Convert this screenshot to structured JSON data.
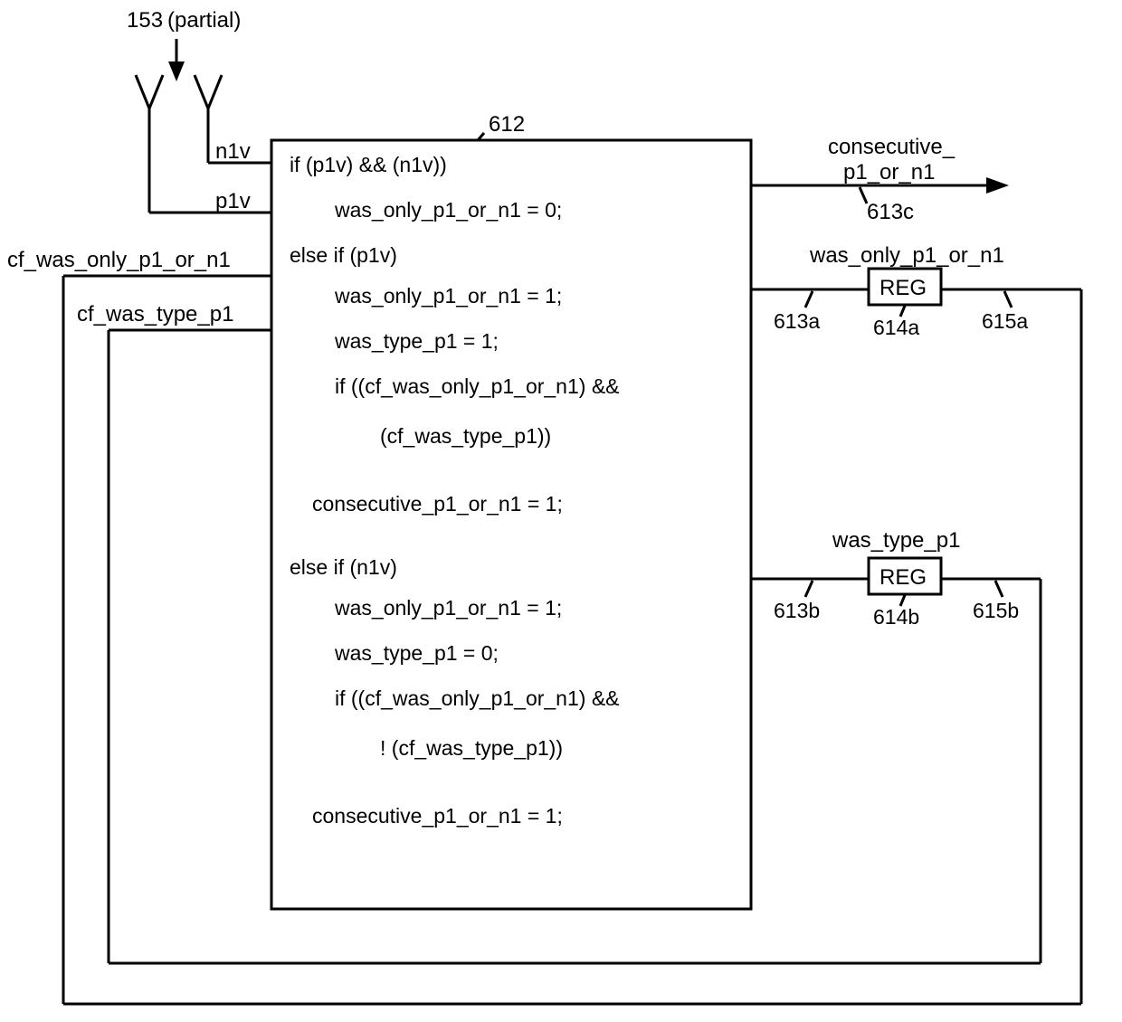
{
  "diagram": {
    "type": "flowchart",
    "stroke_color": "#000000",
    "stroke_width": 3,
    "background_color": "#ffffff",
    "font_family": "Helvetica, Arial, sans-serif",
    "label_fontsize": 24,
    "code_fontsize": 23,
    "top_ref": {
      "num": "153",
      "suffix": "(partial)"
    },
    "main_box_ref": "612",
    "inputs": {
      "n1v": "n1v",
      "p1v": "p1v",
      "cf_was_only": "cf_was_only_p1_or_n1",
      "cf_was_type": "cf_was_type_p1"
    },
    "outputs": {
      "consecutive": {
        "line1": "consecutive_",
        "line2": "p1_or_n1",
        "ref": "613c"
      },
      "was_only": {
        "label": "was_only_p1_or_n1",
        "reg": "REG",
        "ref_left": "613a",
        "ref_mid": "614a",
        "ref_right": "615a"
      },
      "was_type": {
        "label": "was_type_p1",
        "reg": "REG",
        "ref_left": "613b",
        "ref_mid": "614b",
        "ref_right": "615b"
      }
    },
    "code_lines": [
      {
        "indent": 0,
        "text": "if (p1v) && (n1v))"
      },
      {
        "indent": 1,
        "text": "was_only_p1_or_n1 = 0;"
      },
      {
        "indent": 0,
        "text": "else if (p1v)"
      },
      {
        "indent": 1,
        "text": "was_only_p1_or_n1 = 1;"
      },
      {
        "indent": 1,
        "text": "was_type_p1 = 1;"
      },
      {
        "indent": 1,
        "text": "if ((cf_was_only_p1_or_n1) &&"
      },
      {
        "indent": 2,
        "text": "(cf_was_type_p1))"
      },
      {
        "indent": 0.5,
        "text": "consecutive_p1_or_n1 = 1;"
      },
      {
        "indent": 0,
        "text": "else if (n1v)"
      },
      {
        "indent": 1,
        "text": "was_only_p1_or_n1 = 1;"
      },
      {
        "indent": 1,
        "text": "was_type_p1 = 0;"
      },
      {
        "indent": 1,
        "text": "if ((cf_was_only_p1_or_n1) &&"
      },
      {
        "indent": 2,
        "text": "! (cf_was_type_p1))"
      },
      {
        "indent": 0.5,
        "text": "consecutive_p1_or_n1 = 1;"
      }
    ]
  }
}
